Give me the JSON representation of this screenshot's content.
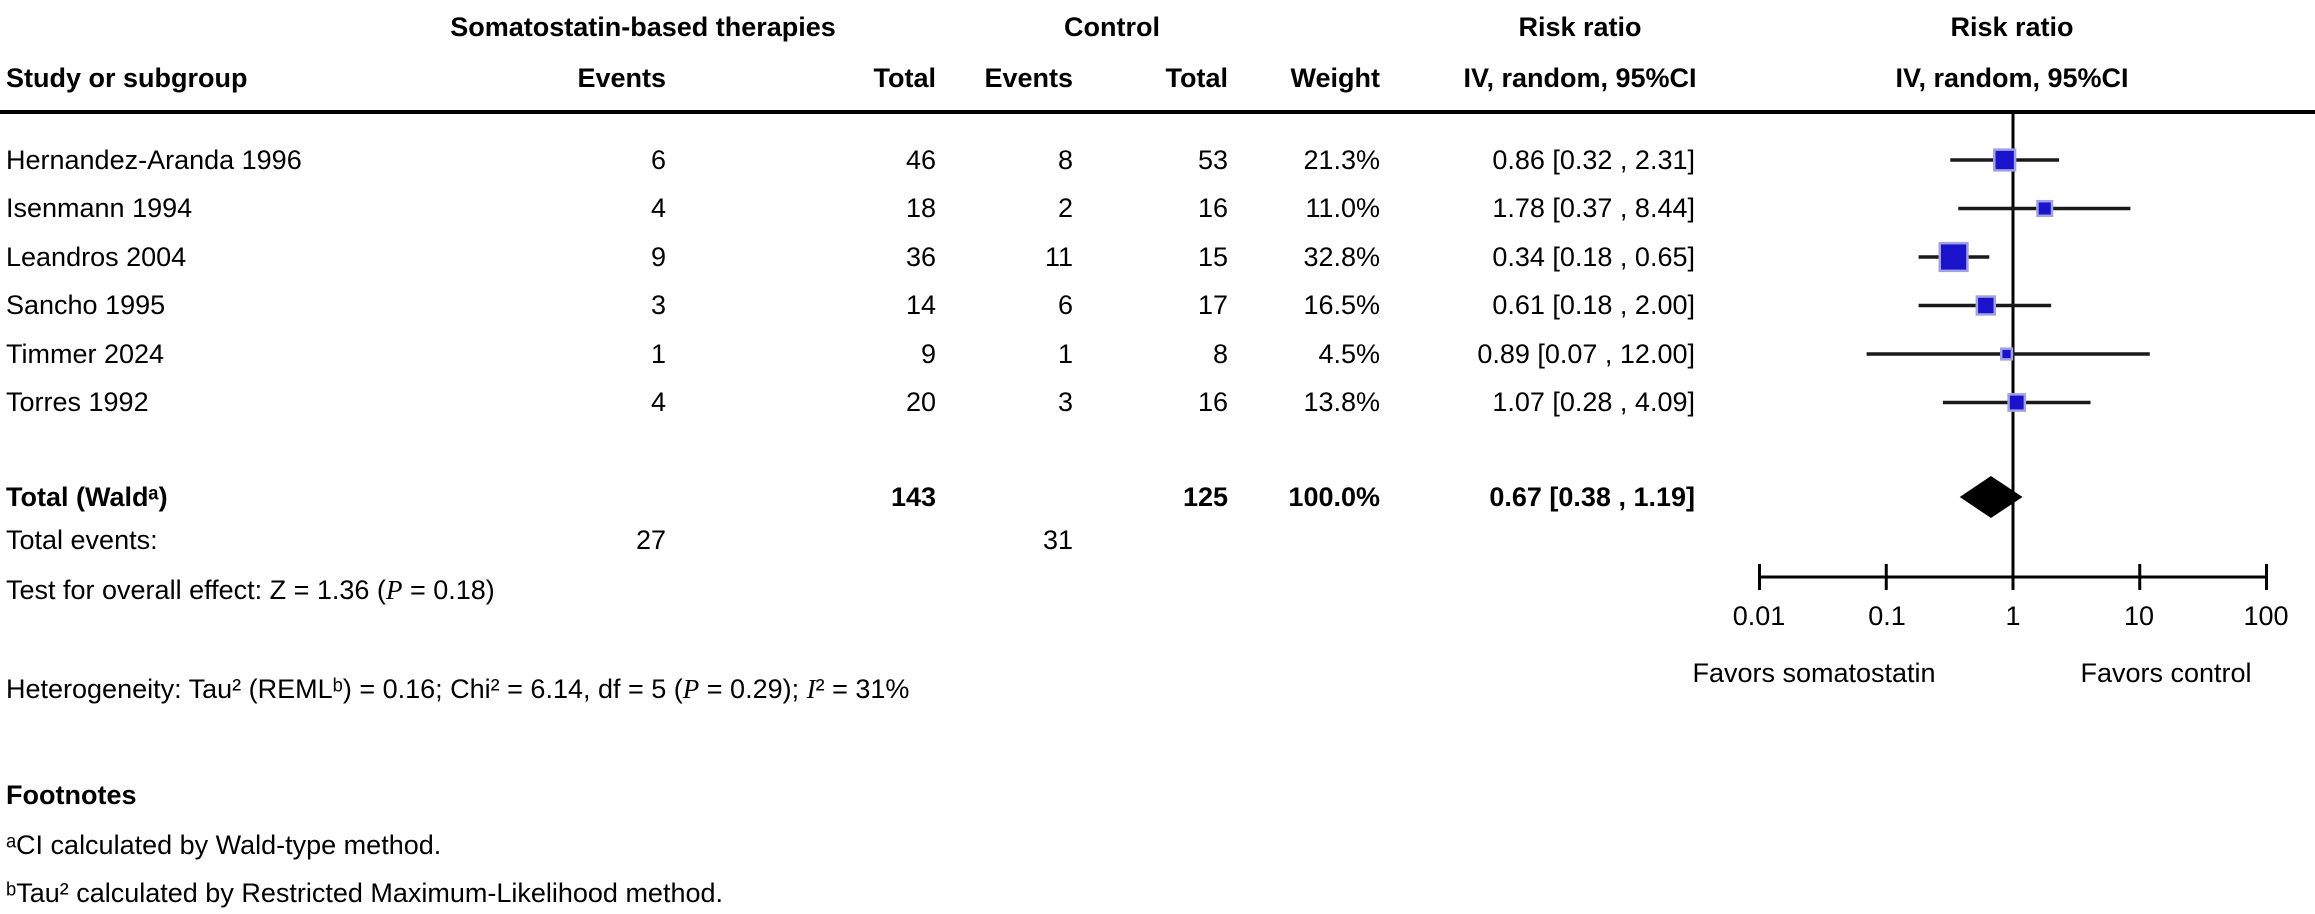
{
  "header": {
    "study_col": "Study or subgroup",
    "treatment_group": "Somatostatin-based therapies",
    "control_group": "Control",
    "events": "Events",
    "total": "Total",
    "events2": "Events",
    "total2": "Total",
    "weight": "Weight",
    "risk_ratio_text_col": [
      "Risk ratio",
      "IV, random, 95%CI"
    ],
    "risk_ratio_plot_col": [
      "Risk ratio",
      "IV, random, 95%CI"
    ]
  },
  "rows": [
    {
      "study": "Hernandez-Aranda 1996",
      "treatment_events": "6",
      "treatment_total": "46",
      "control_events": "8",
      "control_total": "53",
      "weight": "21.3%",
      "risk_ratio_ci": "0.86 [0.32 , 2.31]"
    },
    {
      "study": "Isenmann 1994",
      "treatment_events": "4",
      "treatment_total": "18",
      "control_events": "2",
      "control_total": "16",
      "weight": "11.0%",
      "risk_ratio_ci": "1.78 [0.37 , 8.44]"
    },
    {
      "study": "Leandros 2004",
      "treatment_events": "9",
      "treatment_total": "36",
      "control_events": "11",
      "control_total": "15",
      "weight": "32.8%",
      "risk_ratio_ci": "0.34 [0.18 , 0.65]"
    },
    {
      "study": "Sancho 1995",
      "treatment_events": "3",
      "treatment_total": "14",
      "control_events": "6",
      "control_total": "17",
      "weight": "16.5%",
      "risk_ratio_ci": "0.61 [0.18 , 2.00]"
    },
    {
      "study": "Timmer 2024",
      "treatment_events": "1",
      "treatment_total": "9",
      "control_events": "1",
      "control_total": "8",
      "weight": "4.5%",
      "risk_ratio_ci": "0.89 [0.07 , 12.00]"
    },
    {
      "study": "Torres 1992",
      "treatment_events": "4",
      "treatment_total": "20",
      "control_events": "3",
      "control_total": "16",
      "weight": "13.8%",
      "risk_ratio_ci": "1.07 [0.28 , 4.09]"
    }
  ],
  "total_row": {
    "label": "Total (Waldᵃ)",
    "treatment_total": "143",
    "control_total": "125",
    "weight": "100.0%",
    "risk_ratio_ci": "0.67 [0.38 , 1.19]"
  },
  "total_events_row": {
    "label": "Total events:",
    "treatment": "27",
    "control": "31"
  },
  "overall_effect": {
    "pre": "Test for overall effect: Z = 1.36 (",
    "p": "P",
    "post": " = 0.18)"
  },
  "heterogeneity": {
    "pre": "Heterogeneity: Tau² (REMLᵇ) = 0.16; Chi² = 6.14, df = 5 (",
    "p": "P",
    "mid": " = 0.29); ",
    "i": "I",
    "post": "² = 31%"
  },
  "footnotes": {
    "heading": "Footnotes",
    "note_a": "ᵃCI calculated by Wald-type method.",
    "note_b": "ᵇTau² calculated by Restricted Maximum-Likelihood method."
  },
  "axis": {
    "tick_labels": [
      "0.01",
      "0.1",
      "1",
      "10",
      "100"
    ],
    "favors_left": "Favors somatostatin",
    "favors_right": "Favors control"
  },
  "chart_data": {
    "type": "forest",
    "effect_measure": "Risk ratio",
    "model": "IV, random, 95%CI",
    "x_scale": "log10",
    "xlim": [
      0.01,
      100
    ],
    "x_ticks": [
      0.01,
      0.1,
      1,
      10,
      100
    ],
    "null_line": 1,
    "studies": [
      {
        "name": "Hernandez-Aranda 1996",
        "rr": 0.86,
        "ci_low": 0.32,
        "ci_high": 2.31,
        "weight_pct": 21.3
      },
      {
        "name": "Isenmann 1994",
        "rr": 1.78,
        "ci_low": 0.37,
        "ci_high": 8.44,
        "weight_pct": 11.0
      },
      {
        "name": "Leandros 2004",
        "rr": 0.34,
        "ci_low": 0.18,
        "ci_high": 0.65,
        "weight_pct": 32.8
      },
      {
        "name": "Sancho 1995",
        "rr": 0.61,
        "ci_low": 0.18,
        "ci_high": 2.0,
        "weight_pct": 16.5
      },
      {
        "name": "Timmer 2024",
        "rr": 0.89,
        "ci_low": 0.07,
        "ci_high": 12.0,
        "weight_pct": 4.5
      },
      {
        "name": "Torres 1992",
        "rr": 1.07,
        "ci_low": 0.28,
        "ci_high": 4.09,
        "weight_pct": 13.8
      }
    ],
    "overall": {
      "name": "Total (Wald)",
      "rr": 0.67,
      "ci_low": 0.38,
      "ci_high": 1.19,
      "weight_pct": 100.0
    },
    "favors_left": "Favors somatostatin",
    "favors_right": "Favors control",
    "colors": {
      "marker": "#1a13cb",
      "marker_halo": "#a2a2e0",
      "ci_line": "#1a1a1a",
      "diamond": "#000000",
      "axis": "#000000"
    }
  }
}
